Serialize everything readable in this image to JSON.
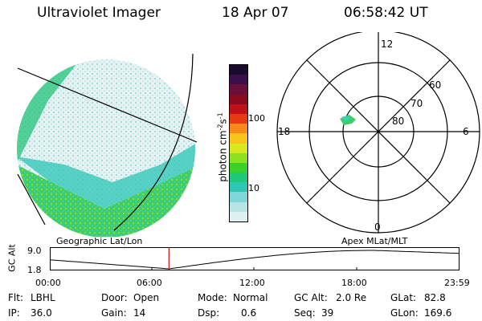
{
  "header": {
    "title": "Ultraviolet Imager",
    "date": "18 Apr 07",
    "time": "06:58:42 UT"
  },
  "colorbar": {
    "label": "photon cm",
    "label_exp1": "-2",
    "label_mid": "s",
    "label_exp2": "-1",
    "tick_100": "100",
    "tick_10": "10",
    "colors": [
      "#1a0b2e",
      "#3a0f4a",
      "#6a0f3a",
      "#8b0a1e",
      "#c0101a",
      "#e83a12",
      "#f7881a",
      "#f6c518",
      "#d8e81e",
      "#8fe01e",
      "#39d12a",
      "#1fc87a",
      "#2ec7b4",
      "#7ed6d9",
      "#b9e4e6",
      "#dff1f1"
    ]
  },
  "polar": {
    "lat_80": "80",
    "lat_70": "70",
    "lat_60": "60",
    "mlt_12": "12",
    "mlt_18": "18",
    "mlt_6": "6",
    "mlt_0": "0"
  },
  "map_labels": {
    "left": "Geographic Lat/Lon",
    "right": "Apex MLat/MLT"
  },
  "altitude_plot": {
    "ylabel": "GC Alt",
    "y_max": "9.0",
    "y_min": "1.8",
    "x_ticks": [
      "00:00",
      "06:00",
      "12:00",
      "18:00",
      "23:59"
    ],
    "marker_time_hours": 6.98
  },
  "info": {
    "flt_label": "Flt:",
    "flt_value": "LBHL",
    "ip_label": "IP:",
    "ip_value": "36.0",
    "door_label": "Door:",
    "door_value": "Open",
    "gain_label": "Gain:",
    "gain_value": "14",
    "mode_label": "Mode:",
    "mode_value": "Normal",
    "dsp_label": "Dsp:",
    "dsp_value": "0.6",
    "gcalt_label": "GC Alt:",
    "gcalt_value": "2.0 Re",
    "seq_label": "Seq:",
    "seq_value": "39",
    "glat_label": "GLat:",
    "glat_value": "82.8",
    "glon_label": "GLon:",
    "glon_value": "169.6"
  }
}
